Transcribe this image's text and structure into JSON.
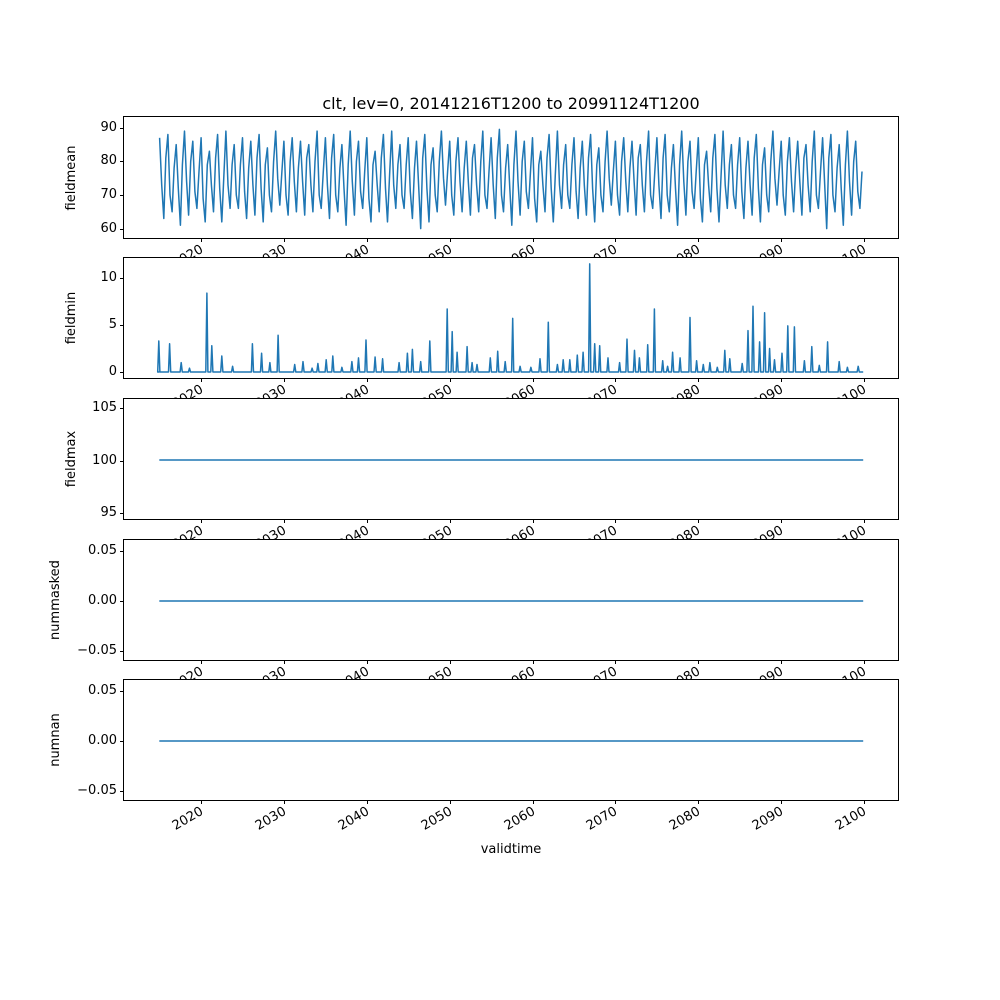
{
  "figure": {
    "title": "clt, lev=0, 20141216T1200 to 20991124T1200",
    "xlabel": "validtime",
    "line_color": "#1f77b4",
    "background": "#ffffff",
    "spine_color": "#000000"
  },
  "x_axis": {
    "label": "validtime",
    "ticks": [
      2020,
      2030,
      2040,
      2050,
      2060,
      2070,
      2080,
      2090,
      2100
    ],
    "tick_labels": [
      "2020",
      "2030",
      "2040",
      "2050",
      "2060",
      "2070",
      "2080",
      "2090",
      "2100"
    ],
    "lim": [
      2010.7,
      2104.1
    ],
    "data_range": [
      2014.96,
      2099.9
    ]
  },
  "chart_data": [
    {
      "id": "fieldmean",
      "type": "line",
      "ylabel": "fieldmean",
      "yticks": [
        60,
        70,
        80,
        90
      ],
      "ytick_labels": [
        "60",
        "70",
        "80",
        "90"
      ],
      "ylim": [
        57.2,
        93.2
      ],
      "x_start": 2015,
      "x_step": 0.25,
      "values": [
        87,
        73,
        63,
        81,
        88,
        70,
        65,
        78,
        85,
        72,
        61,
        79,
        89,
        74,
        64,
        80,
        86,
        71,
        66,
        77,
        87,
        69,
        62,
        79,
        83,
        73,
        65,
        81,
        88,
        72,
        62,
        76,
        89,
        73,
        66,
        79,
        85,
        70,
        66,
        79,
        87,
        71,
        63,
        78,
        86,
        73,
        64,
        81,
        88,
        72,
        62,
        79,
        84,
        70,
        65,
        80,
        89,
        75,
        67,
        77,
        86,
        70,
        64,
        80,
        87,
        74,
        65,
        78,
        86,
        74,
        64,
        81,
        85,
        73,
        65,
        80,
        89,
        70,
        66,
        77,
        87,
        73,
        63,
        81,
        88,
        70,
        65,
        78,
        85,
        72,
        61,
        79,
        89,
        74,
        64,
        80,
        86,
        71,
        66,
        77,
        87,
        69,
        62,
        79,
        83,
        73,
        65,
        81,
        88,
        72,
        62,
        76,
        89,
        73,
        66,
        79,
        85,
        70,
        66,
        79,
        87,
        71,
        63,
        78,
        86,
        73,
        60,
        81,
        88,
        72,
        62,
        79,
        84,
        70,
        65,
        80,
        89,
        75,
        67,
        77,
        86,
        70,
        64,
        80,
        87,
        74,
        65,
        78,
        86,
        74,
        64,
        81,
        85,
        73,
        65,
        80,
        89,
        70,
        66,
        77,
        87,
        73,
        63,
        81,
        89.5,
        70,
        65,
        78,
        85,
        72,
        61,
        79,
        89,
        74,
        64,
        80,
        86,
        71,
        66,
        77,
        87,
        69,
        62,
        79,
        83,
        73,
        65,
        81,
        88,
        72,
        62,
        76,
        89,
        73,
        66,
        79,
        85,
        70,
        66,
        79,
        87,
        71,
        63,
        78,
        86,
        73,
        64,
        81,
        88,
        72,
        62,
        79,
        84,
        70,
        65,
        80,
        89,
        75,
        67,
        77,
        86,
        70,
        64,
        80,
        87,
        74,
        65,
        78,
        86,
        74,
        64,
        81,
        85,
        73,
        65,
        80,
        89,
        70,
        66,
        77,
        87,
        73,
        63,
        81,
        88,
        70,
        65,
        78,
        85,
        72,
        61,
        79,
        89,
        74,
        64,
        80,
        86,
        71,
        66,
        77,
        87,
        69,
        62,
        79,
        83,
        73,
        65,
        81,
        88,
        72,
        62,
        76,
        89,
        73,
        66,
        79,
        85,
        70,
        66,
        79,
        87,
        71,
        63,
        78,
        86,
        73,
        64,
        81,
        88,
        72,
        62,
        79,
        84,
        70,
        65,
        80,
        89,
        75,
        67,
        77,
        86,
        70,
        64,
        80,
        87,
        74,
        65,
        78,
        86,
        74,
        64,
        81,
        85,
        73,
        65,
        80,
        89,
        70,
        66,
        77,
        87,
        73,
        60,
        81,
        88,
        70,
        65,
        78,
        85,
        72,
        61,
        79,
        89,
        74,
        64,
        80,
        86,
        71,
        66,
        77
      ]
    },
    {
      "id": "fieldmin",
      "type": "line",
      "ylabel": "fieldmin",
      "yticks": [
        0,
        5,
        10
      ],
      "ytick_labels": [
        "0",
        "5",
        "10"
      ],
      "ylim": [
        -0.64,
        12.13
      ],
      "baseline": 0,
      "x_range": [
        2014.96,
        2099.9
      ],
      "spikes": [
        [
          2014.9,
          3.3
        ],
        [
          2016.2,
          3.0
        ],
        [
          2017.6,
          1.0
        ],
        [
          2018.6,
          0.4
        ],
        [
          2020.7,
          8.4
        ],
        [
          2021.3,
          2.8
        ],
        [
          2022.5,
          1.7
        ],
        [
          2023.8,
          0.6
        ],
        [
          2026.2,
          3.0
        ],
        [
          2027.3,
          2.0
        ],
        [
          2028.3,
          1.0
        ],
        [
          2029.3,
          3.9
        ],
        [
          2031.3,
          0.8
        ],
        [
          2032.3,
          1.1
        ],
        [
          2033.4,
          0.4
        ],
        [
          2034.1,
          0.9
        ],
        [
          2035.1,
          1.3
        ],
        [
          2035.9,
          1.7
        ],
        [
          2037.0,
          0.5
        ],
        [
          2038.2,
          1.1
        ],
        [
          2039.0,
          1.5
        ],
        [
          2039.9,
          3.4
        ],
        [
          2041.0,
          1.6
        ],
        [
          2041.9,
          1.4
        ],
        [
          2043.9,
          1.0
        ],
        [
          2044.9,
          2.0
        ],
        [
          2045.5,
          2.4
        ],
        [
          2046.5,
          1.1
        ],
        [
          2047.6,
          3.3
        ],
        [
          2049.7,
          6.7
        ],
        [
          2050.3,
          4.3
        ],
        [
          2050.9,
          2.1
        ],
        [
          2052.1,
          2.7
        ],
        [
          2052.7,
          1.0
        ],
        [
          2053.3,
          0.8
        ],
        [
          2054.9,
          1.5
        ],
        [
          2055.8,
          2.2
        ],
        [
          2056.7,
          1.1
        ],
        [
          2057.6,
          5.7
        ],
        [
          2058.5,
          0.6
        ],
        [
          2059.8,
          0.5
        ],
        [
          2060.9,
          1.4
        ],
        [
          2061.9,
          5.3
        ],
        [
          2063.0,
          0.8
        ],
        [
          2063.7,
          1.3
        ],
        [
          2064.5,
          1.3
        ],
        [
          2065.4,
          1.8
        ],
        [
          2066.1,
          2.1
        ],
        [
          2066.9,
          11.5
        ],
        [
          2067.5,
          3.0
        ],
        [
          2068.1,
          2.8
        ],
        [
          2069.1,
          1.5
        ],
        [
          2070.5,
          1.0
        ],
        [
          2071.4,
          3.5
        ],
        [
          2072.3,
          2.3
        ],
        [
          2072.9,
          1.5
        ],
        [
          2073.9,
          2.9
        ],
        [
          2074.7,
          6.7
        ],
        [
          2075.7,
          1.2
        ],
        [
          2076.3,
          0.6
        ],
        [
          2076.9,
          2.1
        ],
        [
          2077.8,
          1.5
        ],
        [
          2079.0,
          5.8
        ],
        [
          2079.8,
          1.2
        ],
        [
          2080.6,
          0.8
        ],
        [
          2081.4,
          1.0
        ],
        [
          2082.3,
          0.5
        ],
        [
          2083.2,
          2.3
        ],
        [
          2083.8,
          1.4
        ],
        [
          2085.3,
          0.9
        ],
        [
          2086.0,
          4.4
        ],
        [
          2086.6,
          7.0
        ],
        [
          2087.4,
          3.2
        ],
        [
          2088.0,
          6.3
        ],
        [
          2088.6,
          2.5
        ],
        [
          2089.2,
          1.3
        ],
        [
          2090.1,
          2.0
        ],
        [
          2090.8,
          4.9
        ],
        [
          2091.6,
          4.8
        ],
        [
          2092.8,
          1.2
        ],
        [
          2093.7,
          2.7
        ],
        [
          2094.6,
          0.7
        ],
        [
          2095.6,
          3.2
        ],
        [
          2097.0,
          1.1
        ],
        [
          2098.0,
          0.5
        ],
        [
          2099.3,
          0.6
        ]
      ]
    },
    {
      "id": "fieldmax",
      "type": "line",
      "ylabel": "fieldmax",
      "yticks": [
        95,
        100,
        105
      ],
      "ytick_labels": [
        "95",
        "100",
        "105"
      ],
      "ylim": [
        94.4,
        105.9
      ],
      "x_range": [
        2014.96,
        2099.9
      ],
      "constant": 100.05
    },
    {
      "id": "nummasked",
      "type": "line",
      "ylabel": "nummasked",
      "yticks": [
        -0.05,
        0,
        0.05
      ],
      "ytick_labels": [
        "−0.05",
        "0.00",
        "0.05"
      ],
      "ylim": [
        -0.0585,
        0.0605
      ],
      "x_range": [
        2014.96,
        2099.9
      ],
      "constant": 0
    },
    {
      "id": "numnan",
      "type": "line",
      "ylabel": "numnan",
      "yticks": [
        -0.05,
        0,
        0.05
      ],
      "ytick_labels": [
        "−0.05",
        "0.00",
        "0.05"
      ],
      "ylim": [
        -0.0585,
        0.0605
      ],
      "x_range": [
        2014.96,
        2099.9
      ],
      "constant": 0
    }
  ]
}
